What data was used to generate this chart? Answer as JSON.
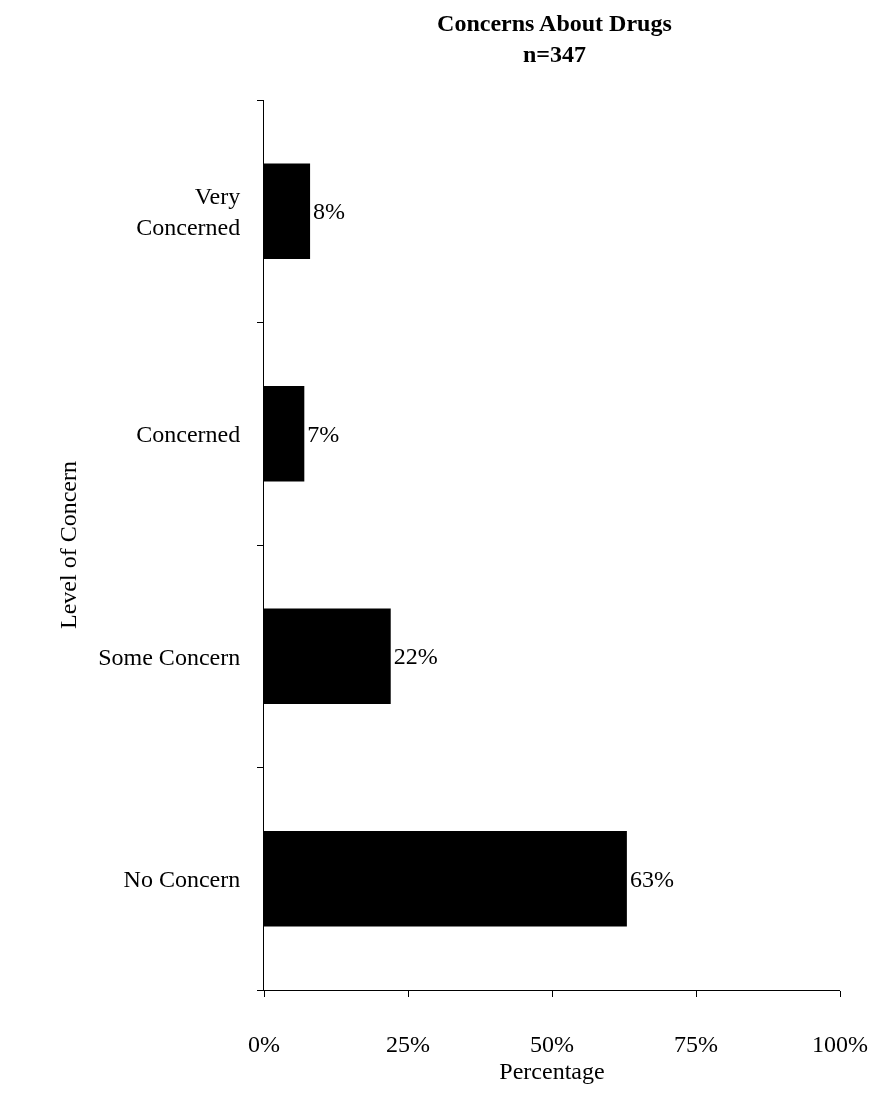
{
  "chart_data": {
    "type": "bar",
    "orientation": "horizontal",
    "title": "Concerns About Drugs",
    "subtitle": "n=347",
    "xlabel": "Percentage",
    "ylabel": "Level of Concern",
    "categories": [
      "Very Concerned",
      "Concerned",
      "Some Concern",
      "No Concern"
    ],
    "values": [
      8,
      7,
      22,
      63
    ],
    "value_labels": [
      "8%",
      "7%",
      "22%",
      "63%"
    ],
    "color": "#000000",
    "xlim": [
      0,
      100
    ],
    "xticks": [
      {
        "value": 0,
        "label": "0%"
      },
      {
        "value": 25,
        "label": "25%"
      },
      {
        "value": 50,
        "label": "50%"
      },
      {
        "value": 75,
        "label": "75%"
      },
      {
        "value": 100,
        "label": "100%"
      }
    ],
    "grid": false
  }
}
